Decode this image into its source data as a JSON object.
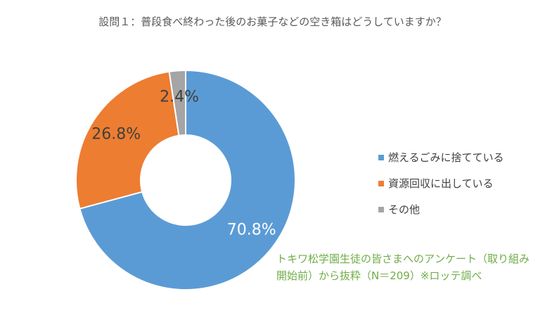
{
  "chart_data": {
    "type": "pie",
    "title": "設問１：普段食べ終わった後のお菓子などの空き箱はどうしていますか？",
    "slices": [
      {
        "label": "燃えるごみに捨てている",
        "value": 70.8,
        "value_label": "70.8%",
        "color": "#5b9bd5"
      },
      {
        "label": "資源回収に出している",
        "value": 26.8,
        "value_label": "26.8%",
        "color": "#ed7d31"
      },
      {
        "label": "その他",
        "value": 2.4,
        "value_label": "2.4%",
        "color": "#a5a5a5"
      }
    ],
    "legend_position": "right",
    "note": "トキワ松学園生徒の皆さまへのアンケート（取り組み開始前）から抜粋（N＝209）※ロッテ調べ"
  }
}
